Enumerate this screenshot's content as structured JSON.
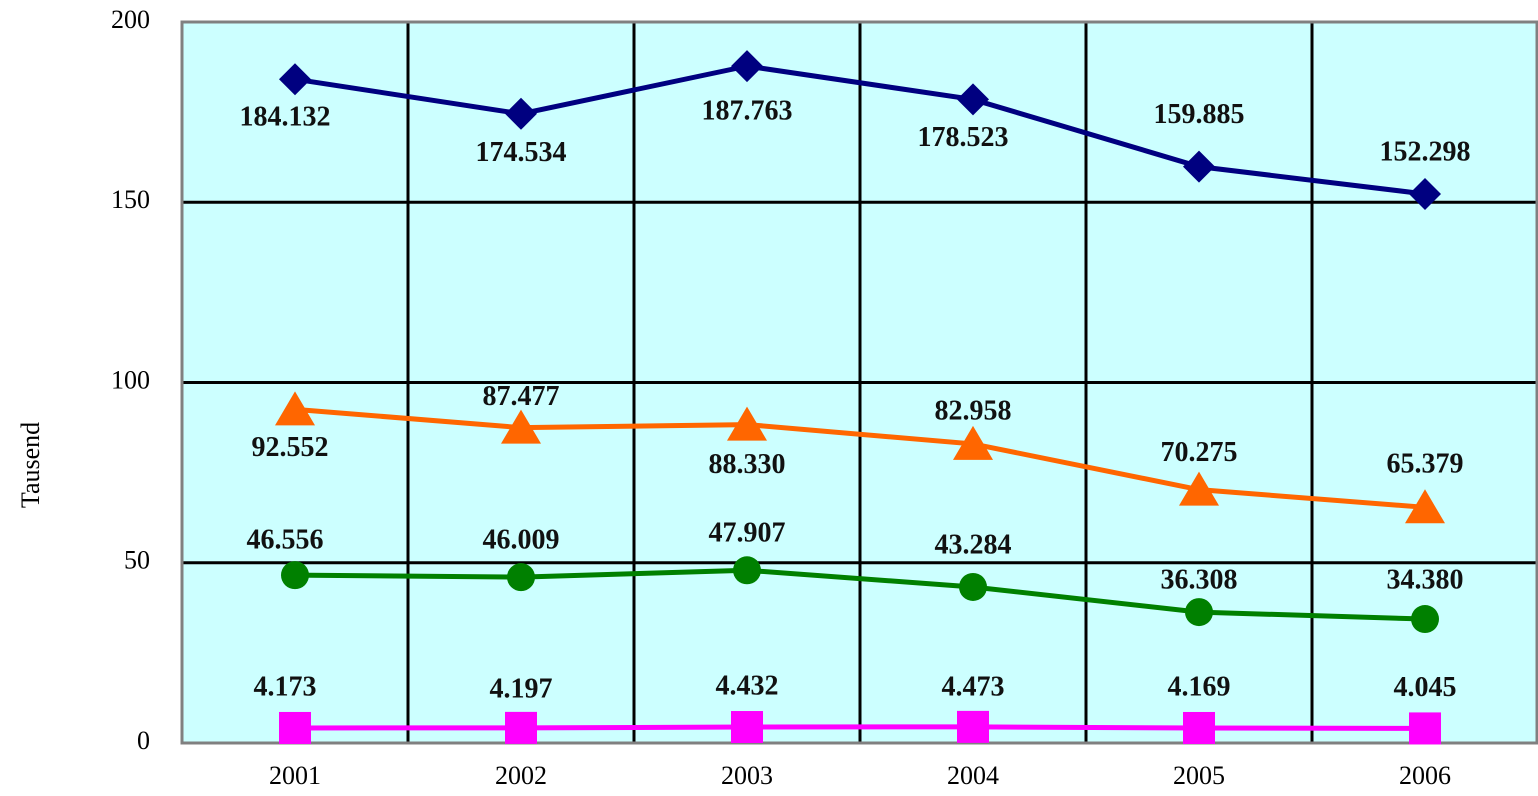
{
  "chart_data": {
    "type": "line",
    "y_label": "Tausend",
    "categories": [
      "2001",
      "2002",
      "2003",
      "2004",
      "2005",
      "2006"
    ],
    "series": [
      {
        "color": "#000080",
        "marker": "diamond",
        "values": [
          184.132,
          174.534,
          187.763,
          178.523,
          159.885,
          152.298
        ],
        "value_labels": [
          "184.132",
          "174.534",
          "187.763",
          "178.523",
          "159.885",
          "152.298"
        ]
      },
      {
        "color": "#ff6600",
        "marker": "triangle",
        "values": [
          92.552,
          87.477,
          88.33,
          82.958,
          70.275,
          65.379
        ],
        "value_labels": [
          "92.552",
          "87.477",
          "88.330",
          "82.958",
          "70.275",
          "65.379"
        ]
      },
      {
        "color": "#008000",
        "marker": "circle",
        "values": [
          46.556,
          46.009,
          47.907,
          43.284,
          36.308,
          34.38
        ],
        "value_labels": [
          "46.556",
          "46.009",
          "47.907",
          "43.284",
          "36.308",
          "34.380"
        ]
      },
      {
        "color": "#ff00ff",
        "marker": "square",
        "values": [
          4.173,
          4.197,
          4.432,
          4.473,
          4.169,
          4.045
        ],
        "value_labels": [
          "4.173",
          "4.197",
          "4.432",
          "4.473",
          "4.169",
          "4.045"
        ]
      }
    ],
    "ylim": [
      0,
      200
    ],
    "yticks": [
      0,
      50,
      100,
      150,
      200
    ],
    "grid": true,
    "background": "#ccffff"
  }
}
